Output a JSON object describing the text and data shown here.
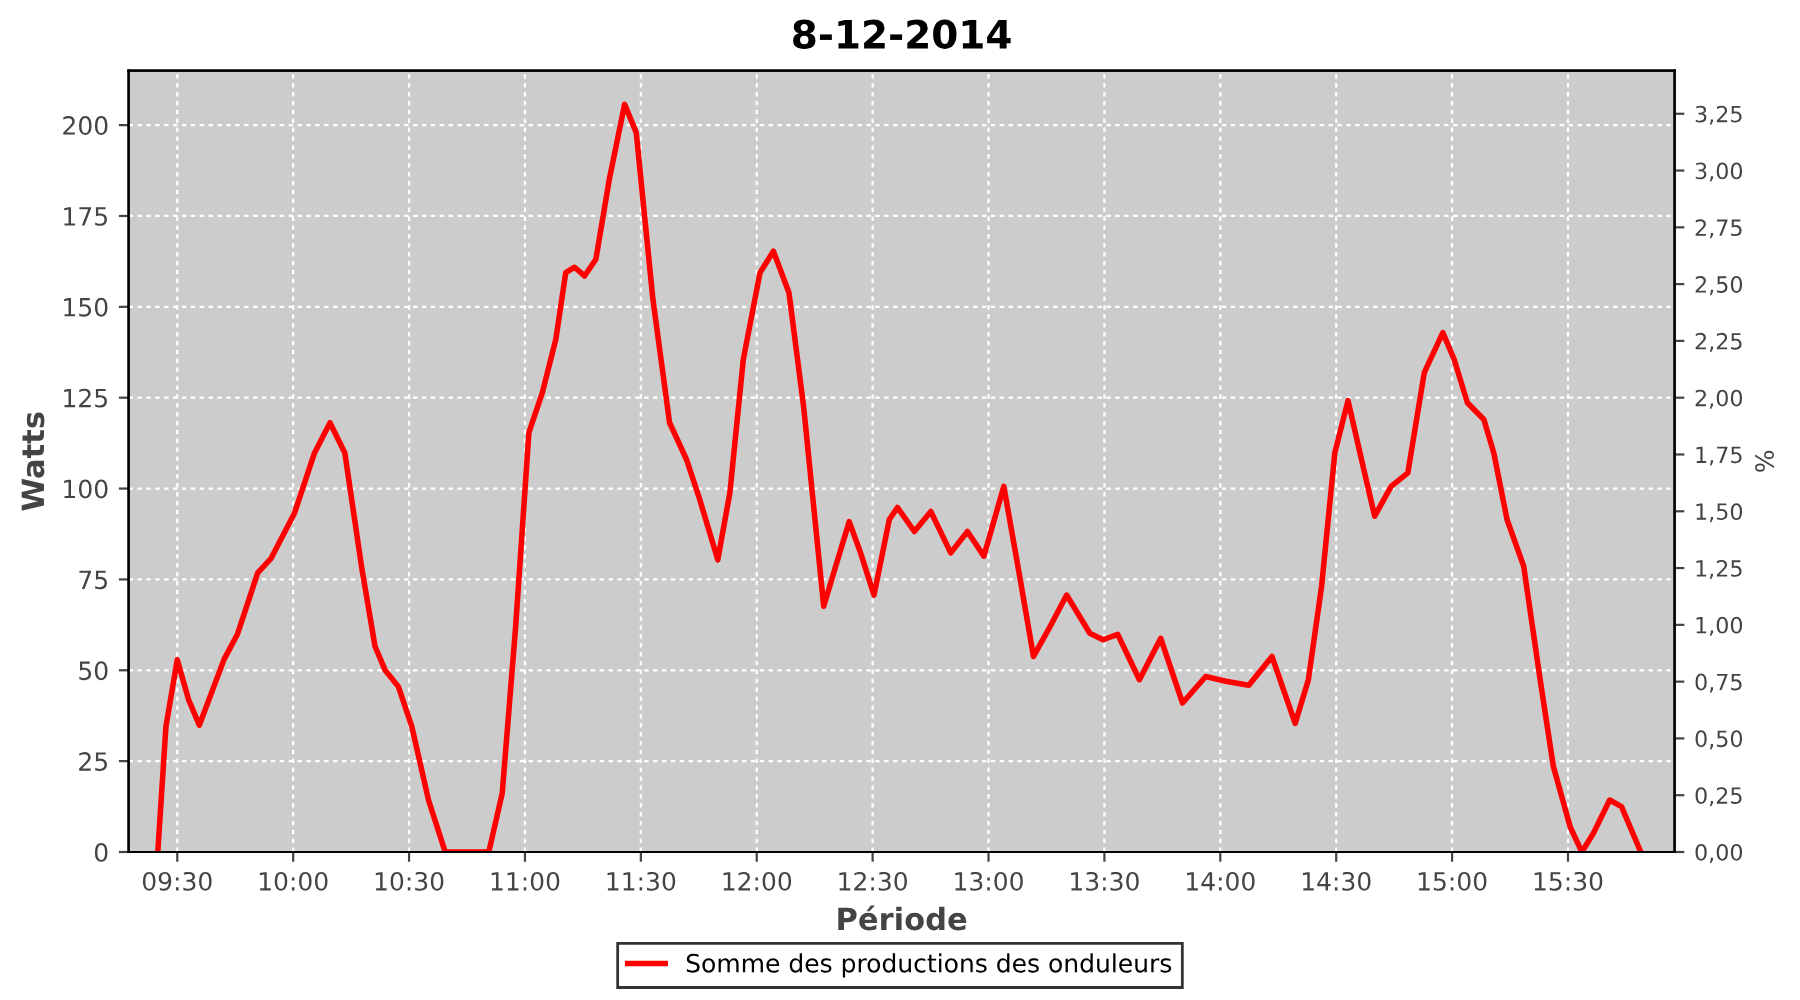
{
  "chart_data": {
    "type": "line",
    "title": "8-12-2014",
    "xlabel": "Période",
    "ylabel": "Watts",
    "y2label": "%",
    "x": [
      9.416,
      9.451,
      9.5,
      9.549,
      9.595,
      9.702,
      9.76,
      9.847,
      9.905,
      10.006,
      10.092,
      10.159,
      10.223,
      10.295,
      10.353,
      10.396,
      10.454,
      10.512,
      10.584,
      10.656,
      10.757,
      10.844,
      10.902,
      10.96,
      11.017,
      11.075,
      11.133,
      11.176,
      11.214,
      11.257,
      11.306,
      11.364,
      11.43,
      11.48,
      11.552,
      11.624,
      11.697,
      11.754,
      11.832,
      11.884,
      11.942,
      12.014,
      12.072,
      12.139,
      12.202,
      12.289,
      12.341,
      12.399,
      12.448,
      12.506,
      12.572,
      12.607,
      12.68,
      12.751,
      12.837,
      12.909,
      12.98,
      13.066,
      13.137,
      13.194,
      13.266,
      13.337,
      13.437,
      13.494,
      13.557,
      13.651,
      13.743,
      13.837,
      13.937,
      14.023,
      14.123,
      14.223,
      14.323,
      14.38,
      14.437,
      14.494,
      14.551,
      14.609,
      14.666,
      14.737,
      14.809,
      14.88,
      14.96,
      15.009,
      15.066,
      15.137,
      15.18,
      15.237,
      15.309,
      15.38,
      15.437,
      15.509,
      15.56,
      15.609,
      15.68,
      15.731,
      15.814
    ],
    "series": [
      {
        "name": "Somme des productions des onduleurs",
        "color": "#ff0000",
        "values": [
          0,
          34.5,
          52.9,
          41.9,
          34.9,
          53,
          60,
          76.8,
          80.8,
          93.3,
          109.8,
          118.1,
          109.8,
          78.5,
          56.6,
          50.1,
          45.5,
          34.5,
          14.3,
          0,
          0,
          0,
          16.2,
          62.1,
          115.4,
          126.4,
          141,
          159.4,
          160.9,
          158.5,
          163.1,
          185.1,
          205.7,
          198,
          152.1,
          118.1,
          108,
          97,
          80.4,
          98.8,
          135.5,
          159.4,
          165.3,
          153.9,
          122.7,
          67.6,
          78.7,
          90.9,
          82.3,
          70.7,
          91.5,
          94.8,
          88.2,
          93.7,
          82.3,
          88.2,
          81.4,
          100.6,
          74.9,
          53.8,
          62.1,
          70.7,
          60.2,
          58.4,
          59.9,
          47.4,
          58.8,
          41,
          48.3,
          47,
          45.9,
          53.8,
          35.4,
          47.4,
          73.1,
          109.8,
          124.2,
          108,
          92.4,
          100.6,
          104.3,
          131.9,
          142.9,
          135.5,
          123.6,
          119,
          109.8,
          91.5,
          78.6,
          47.4,
          23.5,
          7,
          0,
          5.1,
          14.3,
          12.5,
          0
        ]
      }
    ],
    "xlim": [
      9.29,
      15.96
    ],
    "xticks": [
      {
        "value": 9.5,
        "label": "09:30"
      },
      {
        "value": 10,
        "label": "10:00"
      },
      {
        "value": 10.5,
        "label": "10:30"
      },
      {
        "value": 11,
        "label": "11:00"
      },
      {
        "value": 11.5,
        "label": "11:30"
      },
      {
        "value": 12,
        "label": "12:00"
      },
      {
        "value": 12.5,
        "label": "12:30"
      },
      {
        "value": 13,
        "label": "13:00"
      },
      {
        "value": 13.5,
        "label": "13:30"
      },
      {
        "value": 14,
        "label": "14:00"
      },
      {
        "value": 14.5,
        "label": "14:30"
      },
      {
        "value": 15,
        "label": "15:00"
      },
      {
        "value": 15.5,
        "label": "15:30"
      }
    ],
    "ylim": [
      0,
      215
    ],
    "yticks": [
      0,
      25,
      50,
      75,
      100,
      125,
      150,
      175,
      200
    ],
    "y2lim": [
      0,
      3.44
    ],
    "y2ticks": [
      {
        "value": 0,
        "label": "0,00"
      },
      {
        "value": 0.25,
        "label": "0,25"
      },
      {
        "value": 0.5,
        "label": "0,50"
      },
      {
        "value": 0.75,
        "label": "0,75"
      },
      {
        "value": 1,
        "label": "1,00"
      },
      {
        "value": 1.25,
        "label": "1,25"
      },
      {
        "value": 1.5,
        "label": "1,50"
      },
      {
        "value": 1.75,
        "label": "1,75"
      },
      {
        "value": 2,
        "label": "2,00"
      },
      {
        "value": 2.25,
        "label": "2,25"
      },
      {
        "value": 2.5,
        "label": "2,50"
      },
      {
        "value": 2.75,
        "label": "2,75"
      },
      {
        "value": 3,
        "label": "3,00"
      },
      {
        "value": 3.25,
        "label": "3,25"
      }
    ],
    "grid": true,
    "legend": "bottom",
    "marker": "none",
    "line_style": "solid"
  }
}
